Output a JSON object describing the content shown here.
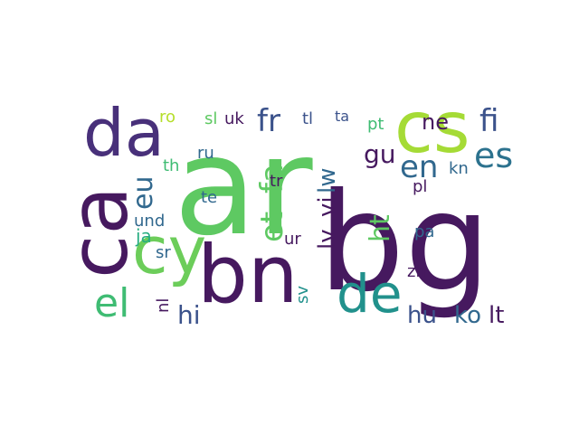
{
  "palette": {
    "dark_purple": "#46195f",
    "indigo": "#48307a",
    "slate_blue": "#3b528b",
    "steel_blue": "#31688e",
    "teal_blue": "#2c728e",
    "teal": "#21918c",
    "sea_green": "#27ad81",
    "green": "#5ec962",
    "lime": "#7ad151",
    "yellow_green": "#b5de2b",
    "light_green": "#3fbc73"
  },
  "words": [
    {
      "text": "ar",
      "color": "#5ec962"
    },
    {
      "text": "bg",
      "color": "#46195f"
    },
    {
      "text": "ca",
      "color": "#46195f"
    },
    {
      "text": "cs",
      "color": "#a5db36"
    },
    {
      "text": "da",
      "color": "#48307a"
    },
    {
      "text": "cy",
      "color": "#6ccd5a"
    },
    {
      "text": "bn",
      "color": "#46195f"
    },
    {
      "text": "de",
      "color": "#21918c"
    },
    {
      "text": "el",
      "color": "#3fbc73"
    },
    {
      "text": "es",
      "color": "#2c728e"
    },
    {
      "text": "fi",
      "color": "#3b528b"
    },
    {
      "text": "fr",
      "color": "#3b528b"
    },
    {
      "text": "eu",
      "color": "#31688e"
    },
    {
      "text": "et",
      "color": "#5ec962"
    },
    {
      "text": "fa",
      "color": "#5ec962"
    },
    {
      "text": "en",
      "color": "#31688e"
    },
    {
      "text": "gu",
      "color": "#46195f"
    },
    {
      "text": "ne",
      "color": "#46195f"
    },
    {
      "text": "ht",
      "color": "#5ec962"
    },
    {
      "text": "lv",
      "color": "#46195f"
    },
    {
      "text": "vi",
      "color": "#46195f"
    },
    {
      "text": "lw",
      "color": "#31688e"
    },
    {
      "text": "hi",
      "color": "#3b528b"
    },
    {
      "text": "hu",
      "color": "#3b528b"
    },
    {
      "text": "ko",
      "color": "#31688e"
    },
    {
      "text": "lt",
      "color": "#46195f"
    },
    {
      "text": "nl",
      "color": "#46195f"
    },
    {
      "text": "ja",
      "color": "#27ad81"
    },
    {
      "text": "und",
      "color": "#31688e"
    },
    {
      "text": "sr",
      "color": "#31688e"
    },
    {
      "text": "te",
      "color": "#31688e"
    },
    {
      "text": "ru",
      "color": "#31688e"
    },
    {
      "text": "th",
      "color": "#3fbc73"
    },
    {
      "text": "ro",
      "color": "#b5de2b"
    },
    {
      "text": "sl",
      "color": "#5ec962"
    },
    {
      "text": "uk",
      "color": "#46195f"
    },
    {
      "text": "tl",
      "color": "#3b528b"
    },
    {
      "text": "ta",
      "color": "#3b528b"
    },
    {
      "text": "pt",
      "color": "#3fbc73"
    },
    {
      "text": "kn",
      "color": "#31688e"
    },
    {
      "text": "tr",
      "color": "#46195f"
    },
    {
      "text": "pl",
      "color": "#46195f"
    },
    {
      "text": "pa",
      "color": "#31688e"
    },
    {
      "text": "ur",
      "color": "#46195f"
    },
    {
      "text": "sv",
      "color": "#21918c"
    },
    {
      "text": "zh",
      "color": "#46195f"
    }
  ]
}
